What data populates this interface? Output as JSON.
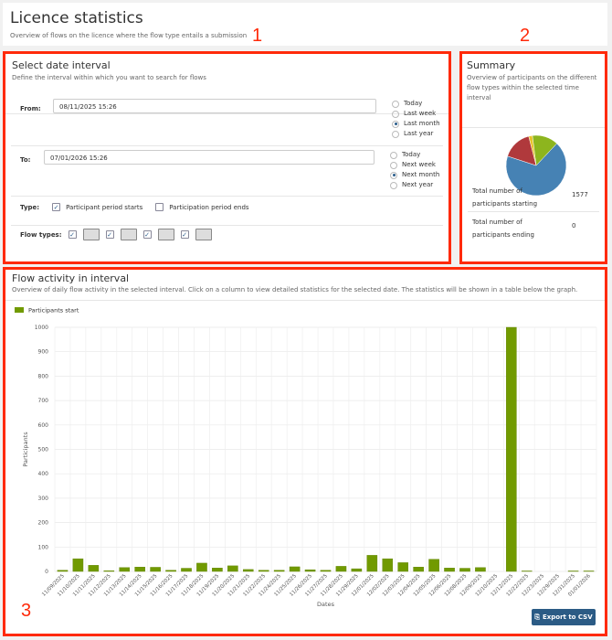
{
  "header": {
    "title": "Licence statistics",
    "subtitle": "Overview of flows on the licence where the flow type entails a submission"
  },
  "annotations": [
    "1",
    "2",
    "3"
  ],
  "date_interval": {
    "title": "Select date interval",
    "subtitle": "Define the interval within which you want to search for flows",
    "from_label": "From:",
    "from_value": "08/11/2025 15:26",
    "from_options": [
      {
        "label": "Today",
        "selected": false
      },
      {
        "label": "Last week",
        "selected": false
      },
      {
        "label": "Last month",
        "selected": true
      },
      {
        "label": "Last year",
        "selected": false
      }
    ],
    "to_label": "To:",
    "to_value": "07/01/2026 15:26",
    "to_options": [
      {
        "label": "Today",
        "selected": false
      },
      {
        "label": "Next week",
        "selected": false
      },
      {
        "label": "Next month",
        "selected": true
      },
      {
        "label": "Next year",
        "selected": false
      }
    ],
    "type_label": "Type:",
    "type_options": [
      {
        "label": "Participant period starts",
        "checked": true
      },
      {
        "label": "Participation period ends",
        "checked": false
      }
    ],
    "flow_types_label": "Flow types:",
    "flow_types": [
      {
        "icon": "form-flow-icon",
        "checked": true
      },
      {
        "icon": "person-flow-icon",
        "checked": true
      },
      {
        "icon": "document-flow-icon",
        "checked": true
      },
      {
        "icon": "grid-flow-icon",
        "checked": true
      }
    ]
  },
  "summary": {
    "title": "Summary",
    "subtitle": "Overview of participants on the different flow types within the selected time interval",
    "pie": [
      {
        "value": 68,
        "color": "#4682b4"
      },
      {
        "value": 16,
        "color": "#b0393c"
      },
      {
        "value": 2,
        "color": "#e8c22a"
      },
      {
        "value": 14,
        "color": "#8db51e"
      }
    ],
    "rows": [
      {
        "label": "Total number of participants starting",
        "value": "1577"
      },
      {
        "label": "Total number of participants ending",
        "value": "0"
      }
    ]
  },
  "activity": {
    "title": "Flow activity in interval",
    "subtitle": "Overview of daily flow activity in the selected interval. Click on a column to view detailed statistics for the selected date. The statistics will be shown in a table below the graph.",
    "export_label": "Export to CSV"
  },
  "chart_data": {
    "type": "bar",
    "xlabel": "Dates",
    "ylabel": "Participants",
    "ylim": [
      0,
      1000
    ],
    "yticks": [
      0,
      100,
      200,
      300,
      400,
      500,
      600,
      700,
      800,
      900,
      1000
    ],
    "grid": true,
    "legend": "top-left",
    "categories": [
      "11/09/2025",
      "11/10/2025",
      "11/11/2025",
      "11/12/2025",
      "11/13/2025",
      "11/14/2025",
      "11/15/2025",
      "11/16/2025",
      "11/17/2025",
      "11/18/2025",
      "11/19/2025",
      "11/20/2025",
      "11/21/2025",
      "11/22/2025",
      "11/24/2025",
      "11/25/2025",
      "11/26/2025",
      "11/27/2025",
      "11/28/2025",
      "11/29/2025",
      "12/01/2025",
      "12/02/2025",
      "12/03/2025",
      "12/04/2025",
      "12/05/2025",
      "12/06/2025",
      "12/08/2025",
      "12/09/2025",
      "12/10/2025",
      "12/12/2025",
      "12/22/2025",
      "12/23/2025",
      "12/29/2025",
      "12/31/2025",
      "01/01/2026"
    ],
    "series": [
      {
        "name": "Participants start",
        "color": "#719a00",
        "values": [
          5,
          52,
          25,
          3,
          16,
          18,
          17,
          5,
          13,
          34,
          14,
          23,
          8,
          5,
          5,
          19,
          7,
          5,
          21,
          11,
          66,
          52,
          36,
          18,
          50,
          14,
          13,
          16,
          0,
          1000,
          2,
          0,
          0,
          2,
          2
        ]
      }
    ]
  }
}
